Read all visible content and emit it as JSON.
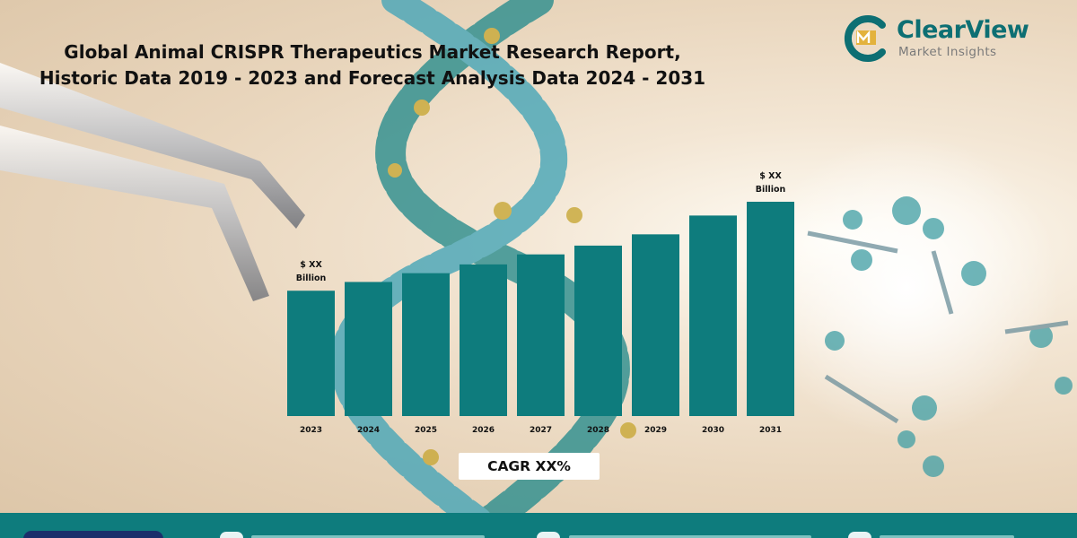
{
  "header": {
    "title_line1": "Global Animal CRISPR Therapeutics Market Research Report,",
    "title_line2": "Historic Data 2019 - 2023 and Forecast Analysis Data 2024 - 2031"
  },
  "brand": {
    "name": "ClearView",
    "tagline": "Market Insights",
    "color": "#0d6f73"
  },
  "chart_data": {
    "type": "bar",
    "categories": [
      "2023",
      "2024",
      "2025",
      "2026",
      "2027",
      "2028",
      "2029",
      "2030",
      "2031"
    ],
    "values": [
      1.0,
      1.07,
      1.14,
      1.21,
      1.29,
      1.36,
      1.45,
      1.6,
      1.71
    ],
    "title": "",
    "xlabel": "",
    "ylabel": "",
    "ylim": [
      0,
      1.71
    ],
    "grid": false,
    "legend": "none",
    "bar_color": "#0e7c7d",
    "annotations": [
      {
        "category": "2023",
        "line1": "$ XX",
        "line2": "Billion"
      },
      {
        "category": "2031",
        "line1": "$ XX",
        "line2": "Billion"
      }
    ],
    "cagr_label": "CAGR XX%"
  },
  "colors": {
    "footer": "#0e7c7d",
    "footer_pill": "#1a2f6b"
  },
  "icons": [
    "globe-icon",
    "mail-icon",
    "phone-icon"
  ]
}
